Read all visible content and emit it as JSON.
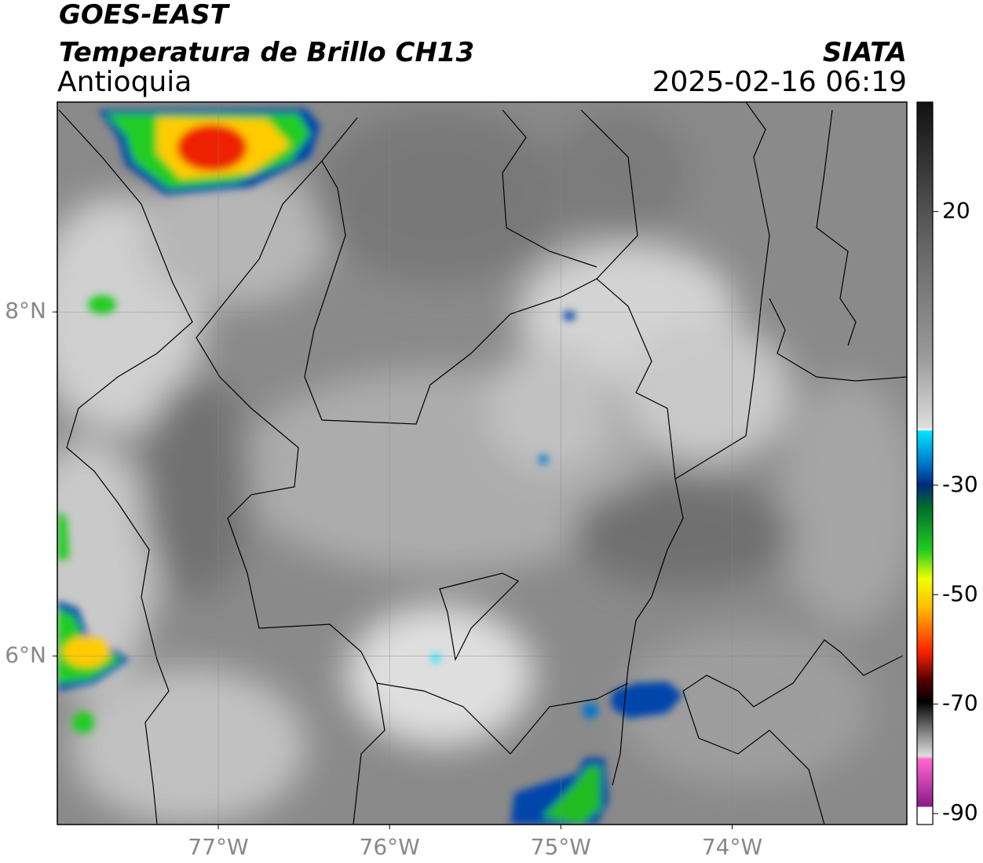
{
  "header": {
    "title": "GOES-EAST",
    "subtitle": "Temperatura de Brillo CH13",
    "region": "Antioquia",
    "agency": "SIATA",
    "datetime": "2025-02-16 06:19"
  },
  "map": {
    "xlim": [
      -77.94,
      -72.98
    ],
    "ylim": [
      5.02,
      9.22
    ],
    "xticks": [
      {
        "value": -77,
        "label": "77°W"
      },
      {
        "value": -76,
        "label": "76°W"
      },
      {
        "value": -75,
        "label": "75°W"
      },
      {
        "value": -74,
        "label": "74°W"
      }
    ],
    "yticks": [
      {
        "value": 8,
        "label": "8°N"
      },
      {
        "value": 6,
        "label": "6°N"
      }
    ],
    "grid": true
  },
  "colorbar": {
    "lim": [
      -92,
      40
    ],
    "ticks": [
      20,
      -30,
      -50,
      -70,
      -90
    ]
  }
}
